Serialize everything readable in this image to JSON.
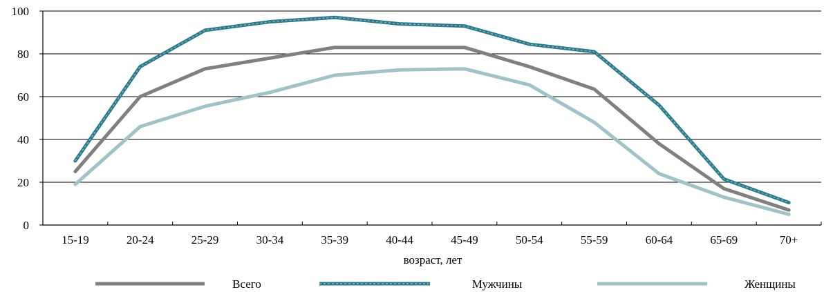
{
  "chart_data": {
    "type": "line",
    "title": "",
    "xlabel": "возраст,  лет",
    "ylabel": "",
    "categories": [
      "15-19",
      "20-24",
      "25-29",
      "30-34",
      "35-39",
      "40-44",
      "45-49",
      "50-54",
      "55-59",
      "60-64",
      "65-69",
      "70+"
    ],
    "ylim": [
      0,
      100
    ],
    "yticks": [
      "0",
      "20",
      "40",
      "60",
      "80",
      "100"
    ],
    "grid": "horizontal",
    "legend_position": "bottom",
    "series": [
      {
        "name": "Всего",
        "color": "#808080",
        "style": "solid",
        "values": [
          25,
          60,
          73,
          78,
          83,
          83,
          83,
          74,
          63.5,
          38,
          17,
          7
        ]
      },
      {
        "name": "Мужчины",
        "color": "#2a7b8a",
        "style": "dashed",
        "values": [
          30,
          74,
          91,
          95,
          97,
          94,
          93,
          84.5,
          81,
          56,
          21.5,
          10.5
        ]
      },
      {
        "name": "Женщины",
        "color": "#9fc3c9",
        "style": "solid",
        "values": [
          19,
          46,
          55.5,
          62,
          70,
          72.5,
          73,
          65.5,
          48,
          24,
          13,
          5
        ]
      }
    ]
  }
}
